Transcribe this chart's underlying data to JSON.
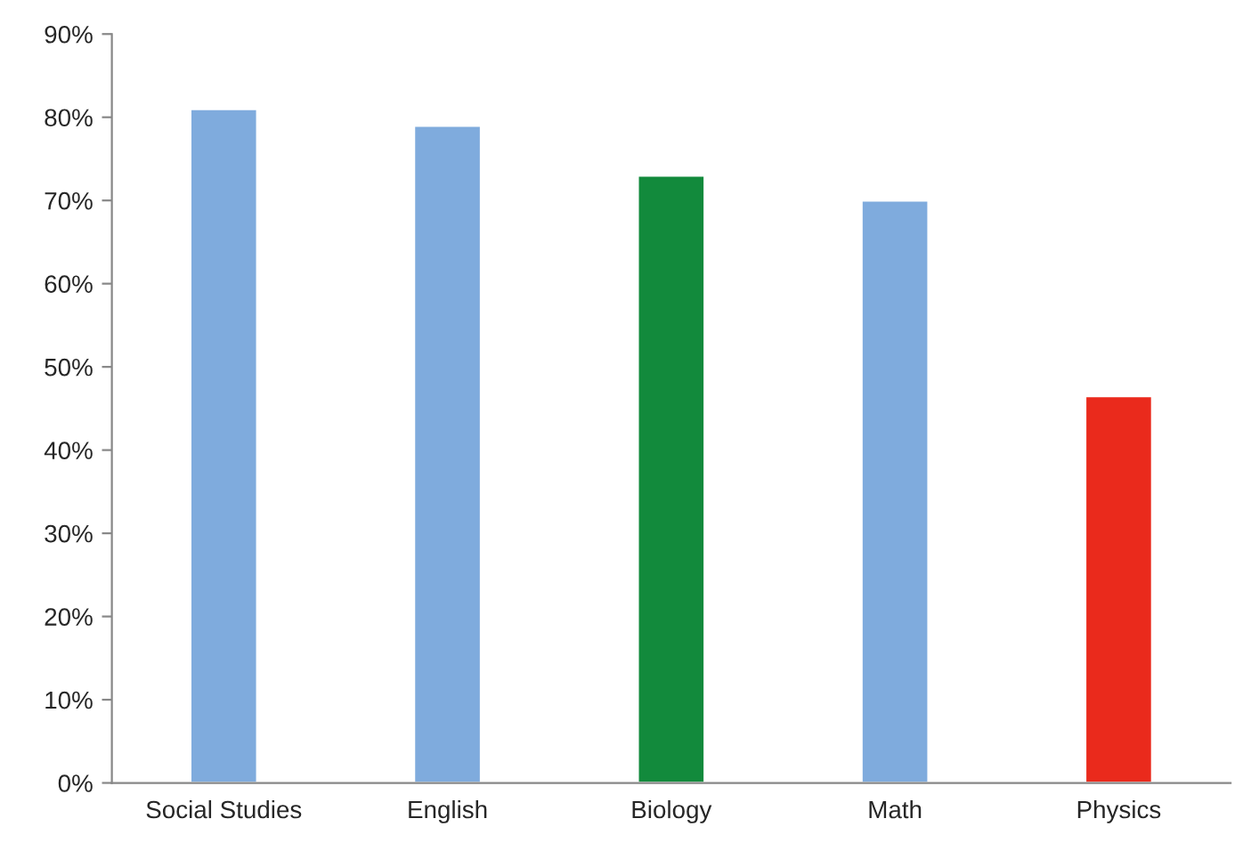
{
  "chart_data": {
    "type": "bar",
    "categories": [
      "Social Studies",
      "English",
      "Biology",
      "Math",
      "Physics"
    ],
    "values": [
      81,
      79,
      73,
      70,
      46.5
    ],
    "colors": [
      "#7fabdd",
      "#7fabdd",
      "#128a3c",
      "#7fabdd",
      "#ea2a1c"
    ],
    "ylim": [
      0,
      90
    ],
    "yticks": [
      {
        "value": 0,
        "label": "0%"
      },
      {
        "value": 10,
        "label": "10%"
      },
      {
        "value": 20,
        "label": "20%"
      },
      {
        "value": 30,
        "label": "30%"
      },
      {
        "value": 40,
        "label": "40%"
      },
      {
        "value": 50,
        "label": "50%"
      },
      {
        "value": 60,
        "label": "60%"
      },
      {
        "value": 70,
        "label": "70%"
      },
      {
        "value": 80,
        "label": "80%"
      },
      {
        "value": 90,
        "label": "90%"
      }
    ],
    "grid": false
  }
}
